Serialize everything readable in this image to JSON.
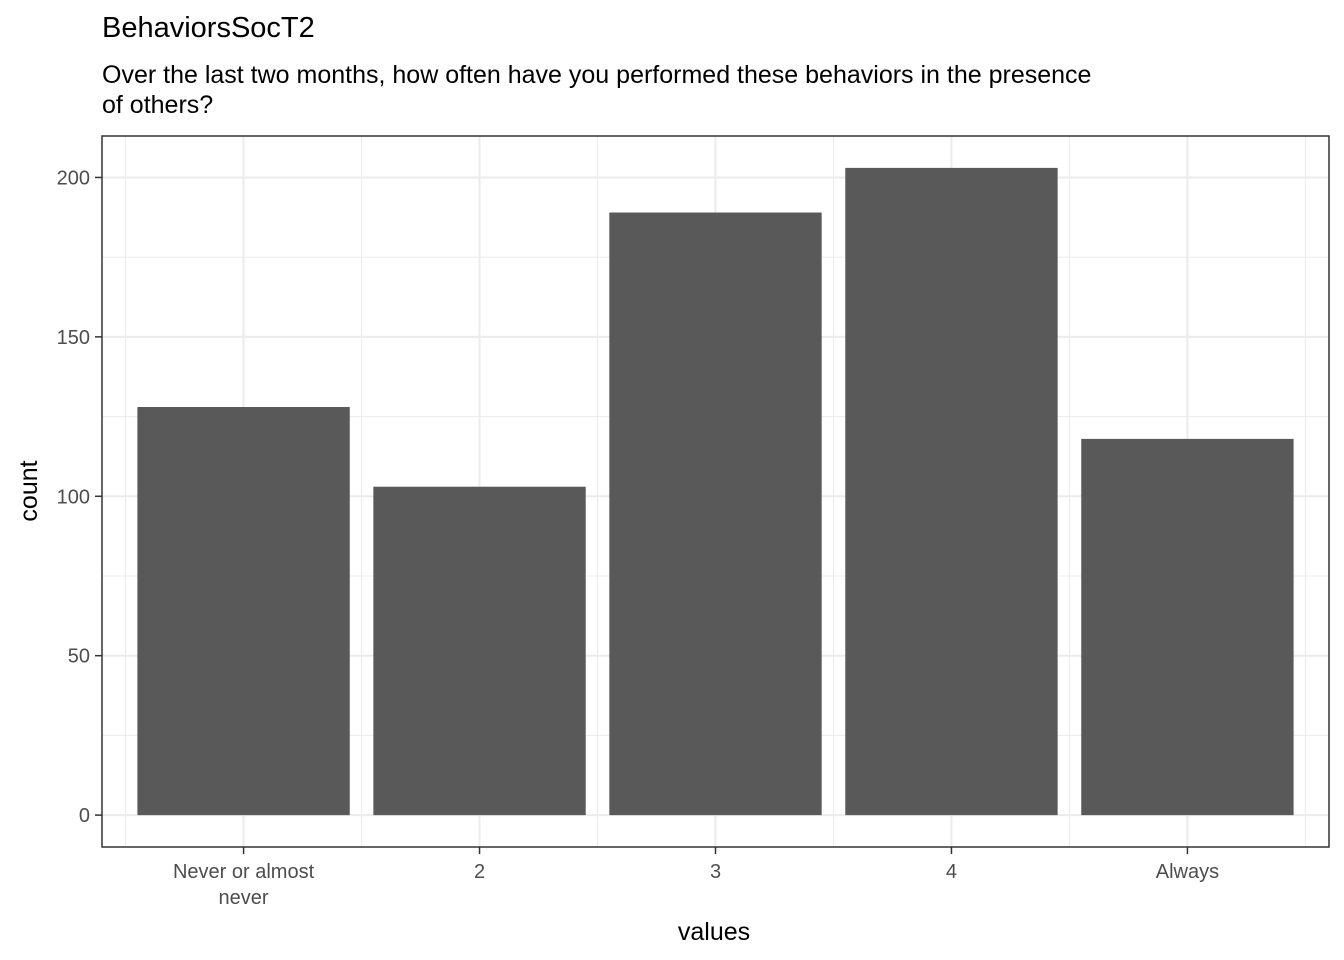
{
  "chart_data": {
    "type": "bar",
    "title": "BehaviorsSocT2",
    "subtitle": "Over the last two months, how often have you performed these behaviors in the presence of others?",
    "xlabel": "values",
    "ylabel": "count",
    "categories": [
      [
        "Never or almost",
        "never"
      ],
      [
        "2"
      ],
      [
        "3"
      ],
      [
        "4"
      ],
      [
        "Always"
      ]
    ],
    "values": [
      128,
      103,
      189,
      203,
      118
    ],
    "ylim": [
      -10,
      213
    ],
    "yticks": [
      0,
      50,
      100,
      150,
      200
    ],
    "grid": true,
    "bar_color": "#595959",
    "panel_border_color": "#333333",
    "grid_color": "#ebebeb"
  }
}
